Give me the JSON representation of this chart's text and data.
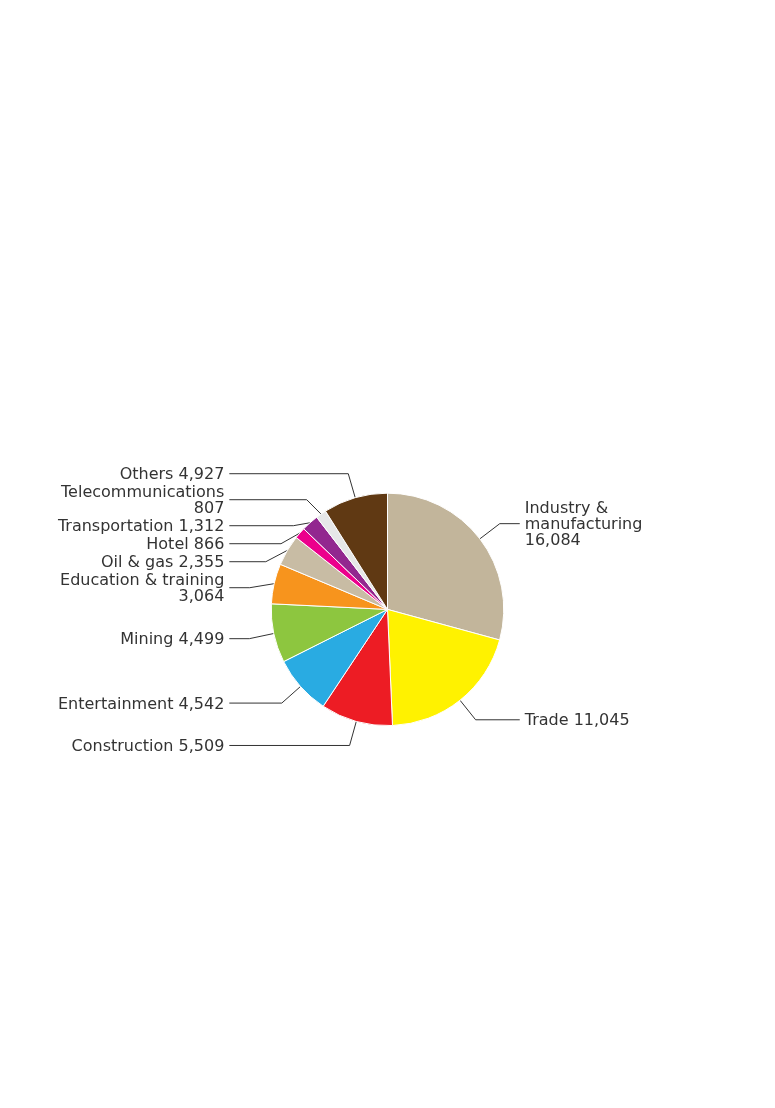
{
  "chart_data": {
    "type": "pie",
    "categories": [
      "Industry & manufacturing",
      "Trade",
      "Construction",
      "Entertainment",
      "Mining",
      "Education & training",
      "Oil & gas",
      "Hotel",
      "Transportation",
      "Telecommunications",
      "Others"
    ],
    "values": [
      16084,
      11045,
      5509,
      4542,
      4499,
      3064,
      2355,
      866,
      1312,
      807,
      4927
    ],
    "colors": [
      "#c2b59b",
      "#fff200",
      "#ed1c24",
      "#29abe2",
      "#8dc63f",
      "#f7941d",
      "#c8bca4",
      "#ec008c",
      "#92278f",
      "#e6e7e8",
      "#603913"
    ],
    "value_labels": [
      "16,084",
      "11,045",
      "5,509",
      "4,542",
      "4,499",
      "3,064",
      "2,355",
      "866",
      "1,312",
      "807",
      "4,927"
    ]
  }
}
